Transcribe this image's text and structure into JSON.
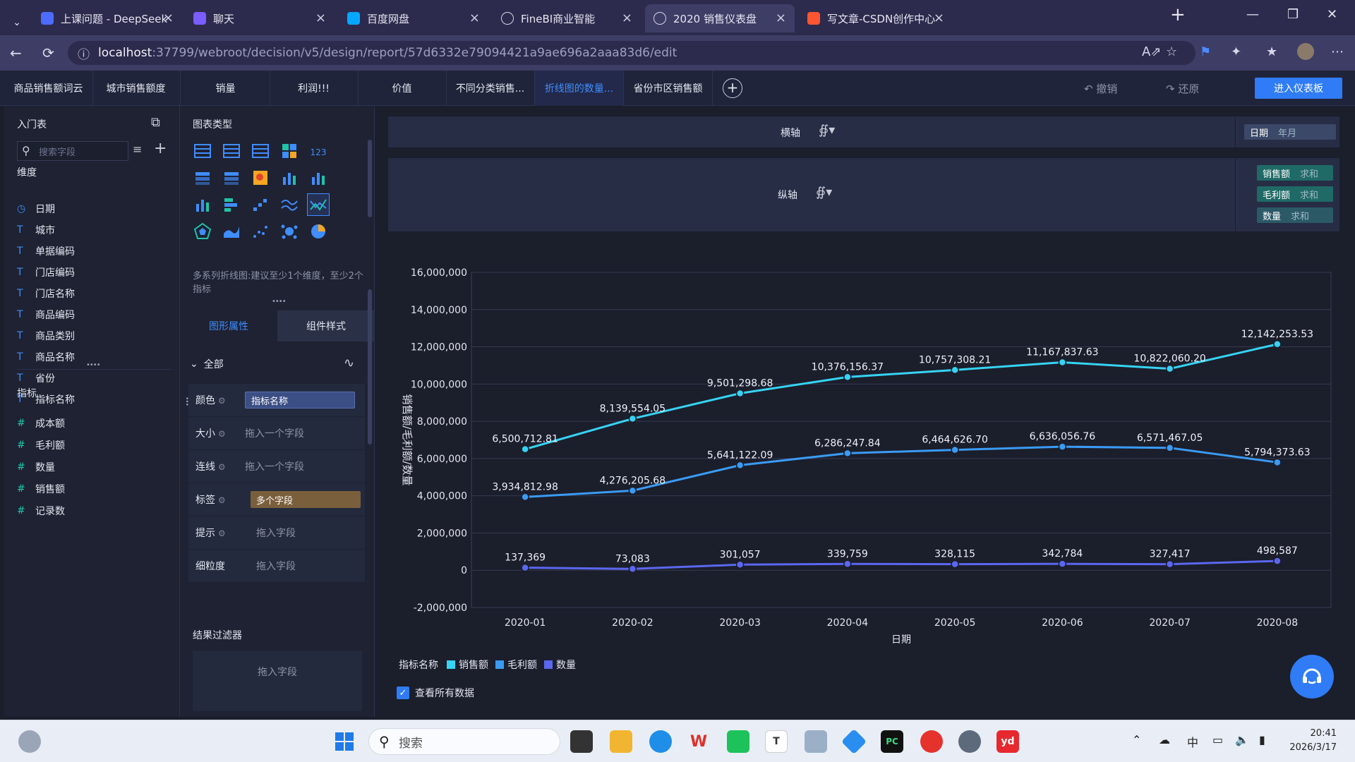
{
  "browser": {
    "tabs": [
      {
        "label": "上课问题 - DeepSeek",
        "icon": "deepseek-icon",
        "color": "#4d6bfe"
      },
      {
        "label": "聊天",
        "icon": "chat-icon",
        "color": "#7b5cff"
      },
      {
        "label": "百度网盘",
        "icon": "baidu-netdisk-icon",
        "color": "#06a7ff"
      },
      {
        "label": "FineBI商业智能",
        "icon": "globe-icon",
        "color": "#5a5a80"
      },
      {
        "label": "2020 销售仪表盘",
        "icon": "globe-icon",
        "color": "#5a5a80"
      },
      {
        "label": "写文章-CSDN创作中心",
        "icon": "csdn-icon",
        "color": "#fc5531"
      }
    ],
    "url_host": "localhost",
    "url_path": ":37799/webroot/decision/v5/design/report/57d6332e79094421a9ae696a2aaa83d6/edit"
  },
  "report_tabs": [
    "商品销售额词云",
    "城市销售额度",
    "销量",
    "利润!!!",
    "价值",
    "不同分类销售...",
    "折线图的数量...",
    "省份市区销售额"
  ],
  "toolbar": {
    "undo": "撤销",
    "redo": "还原",
    "enter_dashboard": "进入仪表板"
  },
  "field_panel": {
    "table_name": "入门表",
    "search_placeholder": "搜索字段",
    "dimension_title": "维度",
    "dimensions": [
      {
        "type": "date",
        "name": "日期"
      },
      {
        "type": "T",
        "name": "城市"
      },
      {
        "type": "T",
        "name": "单据编码"
      },
      {
        "type": "T",
        "name": "门店编码"
      },
      {
        "type": "T",
        "name": "门店名称"
      },
      {
        "type": "T",
        "name": "商品编码"
      },
      {
        "type": "T",
        "name": "商品类别"
      },
      {
        "type": "T",
        "name": "商品名称"
      },
      {
        "type": "T",
        "name": "省份"
      },
      {
        "type": "T",
        "name": "指标名称"
      }
    ],
    "measure_title": "指标",
    "measures": [
      "成本额",
      "毛利额",
      "数量",
      "销售额",
      "记录数"
    ]
  },
  "type_panel": {
    "title": "图表类型",
    "tip": "多系列折线图:建议至少1个维度，至少2个指标",
    "tab_graph": "图形属性",
    "tab_style": "组件样式",
    "all_label": "全部",
    "attrs": [
      {
        "label": "颜色",
        "slot": "指标名称",
        "kind": "pill-blue"
      },
      {
        "label": "大小",
        "slot": "拖入一个字段",
        "kind": "text"
      },
      {
        "label": "连线",
        "slot": "拖入一个字段",
        "kind": "text"
      },
      {
        "label": "标签",
        "slot": "多个字段",
        "kind": "pill-brown"
      },
      {
        "label": "提示",
        "slot": "拖入字段",
        "kind": "text"
      },
      {
        "label": "细粒度",
        "slot": "拖入字段",
        "kind": "text"
      }
    ],
    "filter_title": "结果过滤器",
    "filter_slot": "拖入字段"
  },
  "shelves": {
    "x_label": "横轴",
    "x_field": {
      "name": "日期",
      "agg": "年月"
    },
    "y_label": "纵轴",
    "y_fields": [
      {
        "name": "销售额",
        "agg": "求和"
      },
      {
        "name": "毛利额",
        "agg": "求和"
      },
      {
        "name": "数量",
        "agg": "求和"
      }
    ]
  },
  "chart_data": {
    "type": "line",
    "categories": [
      "2020-01",
      "2020-02",
      "2020-03",
      "2020-04",
      "2020-05",
      "2020-06",
      "2020-07",
      "2020-08"
    ],
    "xlabel": "日期",
    "ylabel": "销售额/毛利额/数量",
    "ylim": [
      -2000000,
      16000000
    ],
    "yticks": [
      -2000000,
      0,
      2000000,
      4000000,
      6000000,
      8000000,
      10000000,
      12000000,
      14000000,
      16000000
    ],
    "ytick_labels": [
      "-2,000,000",
      "0",
      "2,000,000",
      "4,000,000",
      "6,000,000",
      "8,000,000",
      "10,000,000",
      "12,000,000",
      "14,000,000",
      "16,000,000"
    ],
    "legend_title": "指标名称",
    "legend_position": "bottom-left",
    "grid": true,
    "series": [
      {
        "name": "销售额",
        "color": "#36d3f4",
        "values": [
          6500712.81,
          8139554.05,
          9501298.68,
          10376156.37,
          10757308.21,
          11167837.63,
          10822060.2,
          12142253.53
        ],
        "labels": [
          "6,500,712.81",
          "8,139,554.05",
          "9,501,298.68",
          "10,376,156.37",
          "10,757,308.21",
          "11,167,837.63",
          "10,822,060.20",
          "12,142,253.53"
        ]
      },
      {
        "name": "毛利额",
        "color": "#3a9bf5",
        "values": [
          3934812.98,
          4276205.68,
          5641122.09,
          6286247.84,
          6464626.7,
          6636056.76,
          6571467.05,
          5794373.63
        ],
        "labels": [
          "3,934,812.98",
          "4,276,205.68",
          "5,641,122.09",
          "6,286,247.84",
          "6,464,626.70",
          "6,636,056.76",
          "6,571,467.05",
          "5,794,373.63"
        ]
      },
      {
        "name": "数量",
        "color": "#5b67f0",
        "values": [
          137369,
          73083,
          301057,
          339759,
          328115,
          342784,
          327417,
          498587
        ],
        "labels": [
          "137,369",
          "73,083",
          "301,057",
          "339,759",
          "328,115",
          "342,784",
          "327,417",
          "498,587"
        ]
      }
    ]
  },
  "show_all_data": "查看所有数据",
  "taskbar": {
    "search_placeholder": "搜索",
    "ime": "中",
    "time": "20:41",
    "date": "2026/3/17"
  }
}
